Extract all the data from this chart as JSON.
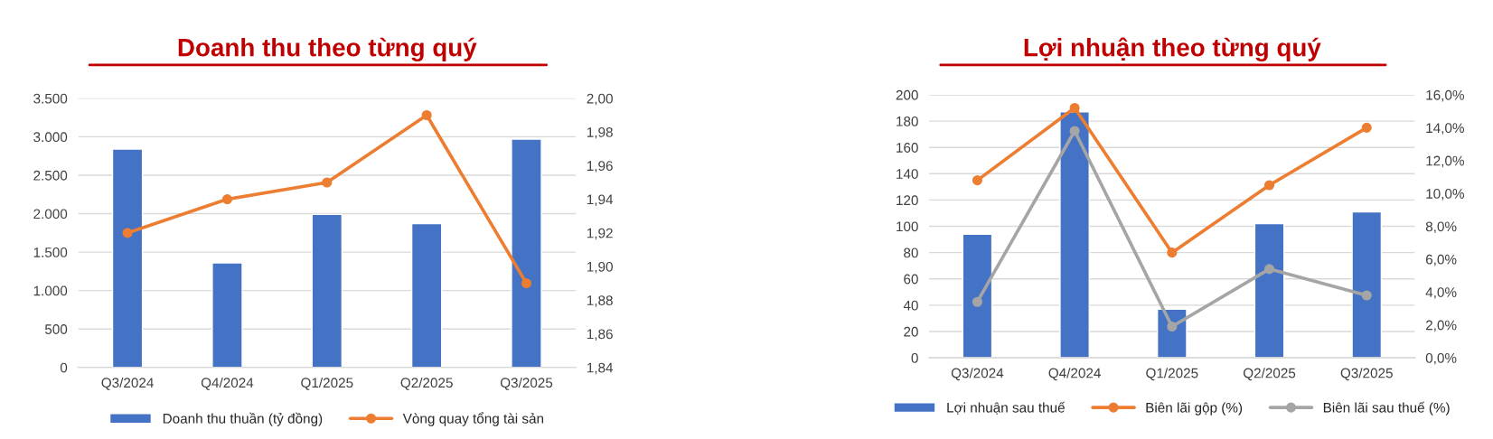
{
  "chart_data": [
    {
      "type": "bar",
      "title": "Doanh thu theo từng quý",
      "categories": [
        "Q3/2024",
        "Q4/2024",
        "Q1/2025",
        "Q2/2025",
        "Q3/2025"
      ],
      "series": [
        {
          "name": "Doanh thu thuần (tỷ đồng)",
          "color": "#4472c4",
          "values": [
            2840,
            1360,
            1990,
            1870,
            2970
          ]
        },
        {
          "name": "Vòng quay tổng tài sản",
          "type": "line",
          "axis": "y2",
          "color": "#ed7d31",
          "values": [
            1.92,
            1.94,
            1.95,
            1.99,
            1.89
          ]
        }
      ],
      "ylim": [
        0,
        3500
      ],
      "yticks": [
        0,
        {
          "value": 500,
          "label": "500"
        },
        {
          "value": 1000,
          "label": "1.000"
        },
        {
          "value": 1500,
          "label": "1.500"
        },
        {
          "value": 2000,
          "label": "2.000"
        },
        {
          "value": 2500,
          "label": "2.500"
        },
        {
          "value": 3000,
          "label": "3.000"
        },
        {
          "value": 3500,
          "label": "3.500"
        }
      ],
      "y2lim": [
        1.84,
        2.0
      ],
      "y2ticks": [
        {
          "value": 1.84,
          "label": "1,84"
        },
        {
          "value": 1.86,
          "label": "1,86"
        },
        {
          "value": 1.88,
          "label": "1,88"
        },
        {
          "value": 1.9,
          "label": "1,90"
        },
        {
          "value": 1.92,
          "label": "1,92"
        },
        {
          "value": 1.94,
          "label": "1,94"
        },
        {
          "value": 1.96,
          "label": "1,96"
        },
        {
          "value": 1.98,
          "label": "1,98"
        },
        {
          "value": 2.0,
          "label": "2,00"
        }
      ],
      "grid": "y",
      "legend": "bottom",
      "marker": "circle"
    },
    {
      "type": "bar",
      "title": "Lợi nhuận theo từng quý",
      "categories": [
        "Q3/2024",
        "Q4/2024",
        "Q1/2025",
        "Q2/2025",
        "Q3/2025"
      ],
      "series": [
        {
          "name": "Lợi nhuận sau thuế",
          "color": "#4472c4",
          "values": [
            94,
            187,
            37,
            102,
            111
          ]
        },
        {
          "name": "Biên lãi gộp (%)",
          "type": "line",
          "axis": "y2",
          "color": "#ed7d31",
          "values": [
            10.8,
            15.2,
            6.4,
            10.5,
            14.0
          ]
        },
        {
          "name": "Biên lãi sau thuế (%)",
          "type": "line",
          "axis": "y2",
          "color": "#a5a5a5",
          "values": [
            3.4,
            13.8,
            1.9,
            5.4,
            3.8
          ]
        }
      ],
      "ylim": [
        0,
        200
      ],
      "yticks": [
        0,
        20,
        40,
        60,
        80,
        100,
        120,
        140,
        160,
        180,
        200
      ],
      "y2lim": [
        0,
        16
      ],
      "y2ticks": [
        {
          "value": 0,
          "label": "0,0%"
        },
        {
          "value": 2,
          "label": "2,0%"
        },
        {
          "value": 4,
          "label": "4,0%"
        },
        {
          "value": 6,
          "label": "6,0%"
        },
        {
          "value": 8,
          "label": "8,0%"
        },
        {
          "value": 10,
          "label": "10,0%"
        },
        {
          "value": 12,
          "label": "12,0%"
        },
        {
          "value": 14,
          "label": "14,0%"
        },
        {
          "value": 16,
          "label": "16,0%"
        }
      ],
      "grid": "y",
      "legend": "bottom",
      "marker": "circle"
    }
  ]
}
